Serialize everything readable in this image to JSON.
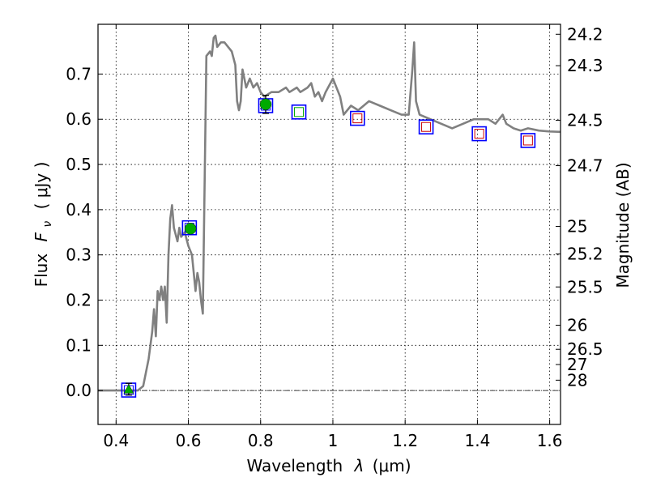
{
  "chart_data": {
    "type": "scatter",
    "xlabel_text": "Wavelength",
    "xlabel_math": "λ",
    "xlabel_unit": "(μm)",
    "ylabel_text": "Flux",
    "ylabel_math": "F",
    "ylabel_sub": "ν",
    "ylabel_unit": "( μJy )",
    "y2label": "Magnitude (AB)",
    "xlim": [
      0.35,
      1.63
    ],
    "ylim": [
      -0.075,
      0.81
    ],
    "grid": true,
    "x_ticks": [
      {
        "value": 0.4,
        "label": "0.4"
      },
      {
        "value": 0.6,
        "label": "0.6"
      },
      {
        "value": 0.8,
        "label": "0.8"
      },
      {
        "value": 1.0,
        "label": "1"
      },
      {
        "value": 1.2,
        "label": "1.2"
      },
      {
        "value": 1.4,
        "label": "1.4"
      },
      {
        "value": 1.6,
        "label": "1.6"
      }
    ],
    "y_ticks": [
      {
        "value": 0.0,
        "label": "0.0"
      },
      {
        "value": 0.1,
        "label": "0.1"
      },
      {
        "value": 0.2,
        "label": "0.2"
      },
      {
        "value": 0.3,
        "label": "0.3"
      },
      {
        "value": 0.4,
        "label": "0.4"
      },
      {
        "value": 0.5,
        "label": "0.5"
      },
      {
        "value": 0.6,
        "label": "0.6"
      },
      {
        "value": 0.7,
        "label": "0.7"
      }
    ],
    "mag_ticks": [
      {
        "value": 0.788,
        "label": "24.2"
      },
      {
        "value": 0.7185,
        "label": "24.3"
      },
      {
        "value": 0.5978,
        "label": "24.5"
      },
      {
        "value": 0.4973,
        "label": "24.7"
      },
      {
        "value": 0.3631,
        "label": "25"
      },
      {
        "value": 0.302,
        "label": "25.2"
      },
      {
        "value": 0.2291,
        "label": "25.5"
      },
      {
        "value": 0.1445,
        "label": "26"
      },
      {
        "value": 0.0912,
        "label": "26.5"
      },
      {
        "value": 0.0575,
        "label": "27"
      },
      {
        "value": 0.0229,
        "label": "28"
      }
    ],
    "zero_line": 0.0,
    "sed_color": "#808080",
    "sed": [
      [
        0.35,
        0.0
      ],
      [
        0.46,
        0.0
      ],
      [
        0.475,
        0.01
      ],
      [
        0.49,
        0.07
      ],
      [
        0.5,
        0.13
      ],
      [
        0.505,
        0.18
      ],
      [
        0.51,
        0.12
      ],
      [
        0.515,
        0.22
      ],
      [
        0.52,
        0.2
      ],
      [
        0.525,
        0.23
      ],
      [
        0.53,
        0.2
      ],
      [
        0.535,
        0.23
      ],
      [
        0.54,
        0.15
      ],
      [
        0.545,
        0.3
      ],
      [
        0.55,
        0.38
      ],
      [
        0.555,
        0.41
      ],
      [
        0.56,
        0.36
      ],
      [
        0.57,
        0.33
      ],
      [
        0.575,
        0.36
      ],
      [
        0.58,
        0.34
      ],
      [
        0.59,
        0.35
      ],
      [
        0.6,
        0.32
      ],
      [
        0.61,
        0.3
      ],
      [
        0.62,
        0.22
      ],
      [
        0.625,
        0.26
      ],
      [
        0.63,
        0.24
      ],
      [
        0.635,
        0.2
      ],
      [
        0.64,
        0.17
      ],
      [
        0.65,
        0.74
      ],
      [
        0.66,
        0.75
      ],
      [
        0.665,
        0.74
      ],
      [
        0.67,
        0.78
      ],
      [
        0.675,
        0.785
      ],
      [
        0.68,
        0.76
      ],
      [
        0.69,
        0.77
      ],
      [
        0.7,
        0.77
      ],
      [
        0.71,
        0.76
      ],
      [
        0.72,
        0.75
      ],
      [
        0.73,
        0.72
      ],
      [
        0.735,
        0.64
      ],
      [
        0.74,
        0.62
      ],
      [
        0.745,
        0.64
      ],
      [
        0.75,
        0.71
      ],
      [
        0.76,
        0.67
      ],
      [
        0.77,
        0.69
      ],
      [
        0.78,
        0.67
      ],
      [
        0.79,
        0.68
      ],
      [
        0.8,
        0.66
      ],
      [
        0.81,
        0.65
      ],
      [
        0.83,
        0.66
      ],
      [
        0.85,
        0.66
      ],
      [
        0.87,
        0.67
      ],
      [
        0.88,
        0.66
      ],
      [
        0.9,
        0.67
      ],
      [
        0.91,
        0.66
      ],
      [
        0.93,
        0.67
      ],
      [
        0.94,
        0.68
      ],
      [
        0.95,
        0.65
      ],
      [
        0.96,
        0.66
      ],
      [
        0.97,
        0.64
      ],
      [
        0.98,
        0.66
      ],
      [
        1.0,
        0.69
      ],
      [
        1.02,
        0.65
      ],
      [
        1.03,
        0.61
      ],
      [
        1.05,
        0.63
      ],
      [
        1.07,
        0.62
      ],
      [
        1.1,
        0.64
      ],
      [
        1.13,
        0.63
      ],
      [
        1.16,
        0.62
      ],
      [
        1.19,
        0.61
      ],
      [
        1.21,
        0.61
      ],
      [
        1.22,
        0.71
      ],
      [
        1.225,
        0.77
      ],
      [
        1.23,
        0.64
      ],
      [
        1.24,
        0.61
      ],
      [
        1.27,
        0.6
      ],
      [
        1.3,
        0.59
      ],
      [
        1.33,
        0.58
      ],
      [
        1.36,
        0.59
      ],
      [
        1.39,
        0.6
      ],
      [
        1.41,
        0.6
      ],
      [
        1.43,
        0.6
      ],
      [
        1.45,
        0.59
      ],
      [
        1.47,
        0.61
      ],
      [
        1.48,
        0.59
      ],
      [
        1.5,
        0.58
      ],
      [
        1.52,
        0.575
      ],
      [
        1.54,
        0.58
      ],
      [
        1.57,
        0.575
      ],
      [
        1.6,
        0.573
      ],
      [
        1.63,
        0.572
      ]
    ],
    "model_boxes": [
      {
        "x": 0.435,
        "y": 0.001,
        "border": "#0000ff",
        "inner": "#0000ff"
      },
      {
        "x": 0.603,
        "y": 0.36,
        "border": "#0000ff",
        "inner": "#0000ff"
      },
      {
        "x": 0.814,
        "y": 0.63,
        "border": "#0000ff",
        "inner": "#0000ff"
      },
      {
        "x": 0.906,
        "y": 0.616,
        "border": "#0000ff",
        "inner": "#00aa00"
      },
      {
        "x": 1.068,
        "y": 0.602,
        "border": "#0000ff",
        "inner": "#cc0000"
      },
      {
        "x": 1.258,
        "y": 0.583,
        "border": "#0000ff",
        "inner": "#cc0000"
      },
      {
        "x": 1.405,
        "y": 0.568,
        "border": "#0000ff",
        "inner": "#cc0000"
      },
      {
        "x": 1.54,
        "y": 0.553,
        "border": "#0000ff",
        "inner": "#cc0000"
      }
    ],
    "observations": [
      {
        "x": 0.435,
        "y": 0.003,
        "yerr": 0.013,
        "marker": "triangle",
        "color": "#00aa00"
      },
      {
        "x": 0.606,
        "y": 0.358,
        "yerr": 0.009,
        "marker": "circle",
        "color": "#00aa00"
      },
      {
        "x": 0.814,
        "y": 0.633,
        "yerr": 0.02,
        "marker": "circle",
        "color": "#00aa00"
      }
    ]
  }
}
